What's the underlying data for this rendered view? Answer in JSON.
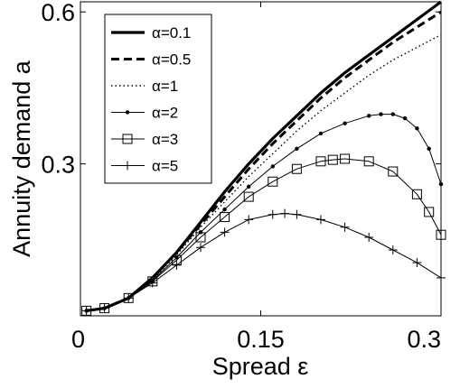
{
  "chart_data": {
    "type": "line",
    "title": "",
    "xlabel": "Spread ε",
    "ylabel": "Annuity demand a",
    "xlim": [
      0,
      0.3
    ],
    "ylim": [
      0,
      0.62
    ],
    "x_ticks": [
      0,
      0.15,
      0.3
    ],
    "x_tick_labels": [
      "0",
      "0.15",
      "0.3"
    ],
    "y_ticks": [
      0.3,
      0.6
    ],
    "y_tick_labels": [
      "0.3",
      "0.6"
    ],
    "grid": false,
    "legend_position": "top-left",
    "series": [
      {
        "name": "α=0.1",
        "line_style": "solid-thick",
        "marker": "none",
        "x": [
          0.005,
          0.02,
          0.04,
          0.06,
          0.08,
          0.1,
          0.12,
          0.14,
          0.16,
          0.18,
          0.2,
          0.22,
          0.24,
          0.26,
          0.28,
          0.3
        ],
        "y": [
          0.01,
          0.015,
          0.035,
          0.075,
          0.125,
          0.185,
          0.245,
          0.3,
          0.35,
          0.395,
          0.44,
          0.48,
          0.515,
          0.55,
          0.585,
          0.62
        ]
      },
      {
        "name": "α=0.5",
        "line_style": "dashed-thick",
        "marker": "none",
        "x": [
          0.005,
          0.02,
          0.04,
          0.06,
          0.08,
          0.1,
          0.12,
          0.14,
          0.16,
          0.18,
          0.2,
          0.22,
          0.24,
          0.26,
          0.28,
          0.3
        ],
        "y": [
          0.01,
          0.015,
          0.035,
          0.075,
          0.125,
          0.18,
          0.235,
          0.29,
          0.34,
          0.385,
          0.43,
          0.47,
          0.505,
          0.54,
          0.57,
          0.6
        ]
      },
      {
        "name": "α=1",
        "line_style": "dotted",
        "marker": "none",
        "x": [
          0.005,
          0.02,
          0.04,
          0.06,
          0.08,
          0.1,
          0.12,
          0.14,
          0.16,
          0.18,
          0.2,
          0.22,
          0.24,
          0.26,
          0.28,
          0.3
        ],
        "y": [
          0.01,
          0.015,
          0.035,
          0.072,
          0.12,
          0.175,
          0.225,
          0.275,
          0.32,
          0.365,
          0.405,
          0.44,
          0.475,
          0.505,
          0.53,
          0.555
        ]
      },
      {
        "name": "α=2",
        "line_style": "solid",
        "marker": "dot",
        "x": [
          0.005,
          0.02,
          0.04,
          0.06,
          0.08,
          0.1,
          0.12,
          0.14,
          0.16,
          0.18,
          0.2,
          0.22,
          0.24,
          0.25,
          0.26,
          0.27,
          0.28,
          0.29,
          0.3
        ],
        "y": [
          0.01,
          0.015,
          0.035,
          0.07,
          0.115,
          0.165,
          0.21,
          0.255,
          0.295,
          0.33,
          0.36,
          0.38,
          0.395,
          0.398,
          0.398,
          0.39,
          0.37,
          0.33,
          0.26
        ]
      },
      {
        "name": "α=3",
        "line_style": "solid",
        "marker": "square",
        "x": [
          0.005,
          0.02,
          0.04,
          0.06,
          0.08,
          0.1,
          0.12,
          0.14,
          0.16,
          0.18,
          0.2,
          0.21,
          0.22,
          0.24,
          0.26,
          0.28,
          0.29,
          0.3
        ],
        "y": [
          0.01,
          0.015,
          0.035,
          0.068,
          0.11,
          0.155,
          0.195,
          0.235,
          0.265,
          0.29,
          0.305,
          0.308,
          0.31,
          0.305,
          0.285,
          0.24,
          0.205,
          0.16
        ]
      },
      {
        "name": "α=5",
        "line_style": "solid",
        "marker": "plus",
        "x": [
          0.005,
          0.02,
          0.04,
          0.06,
          0.08,
          0.1,
          0.12,
          0.14,
          0.16,
          0.17,
          0.18,
          0.2,
          0.22,
          0.24,
          0.26,
          0.28,
          0.3
        ],
        "y": [
          0.01,
          0.015,
          0.035,
          0.065,
          0.1,
          0.135,
          0.165,
          0.19,
          0.2,
          0.202,
          0.2,
          0.19,
          0.175,
          0.155,
          0.13,
          0.105,
          0.075
        ]
      }
    ]
  }
}
